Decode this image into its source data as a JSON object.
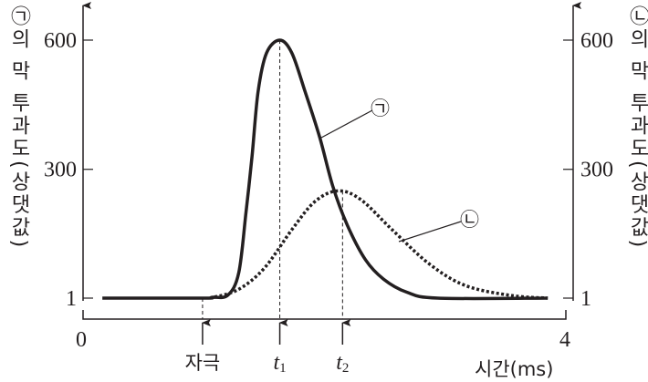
{
  "chart_data": {
    "type": "line",
    "title": "",
    "xlabel": "시간(ms)",
    "ylabel_left": "㉠의 막 투과도(상댓값)",
    "ylabel_right": "㉡의 막 투과도(상댓값)",
    "xlim": [
      0,
      4
    ],
    "ylim": [
      1,
      600
    ],
    "x_ticks": [
      "0",
      "4"
    ],
    "y_ticks_left": [
      "600",
      "300",
      "1"
    ],
    "y_ticks_right": [
      "600",
      "300",
      "1"
    ],
    "y_tick_values": [
      600,
      300,
      1
    ],
    "grid": false,
    "markers": [
      {
        "label": "자극",
        "x": 0.99
      },
      {
        "label": "t",
        "sub": "1",
        "x": 1.63
      },
      {
        "label": "t",
        "sub": "2",
        "x": 2.15
      }
    ],
    "series": [
      {
        "name": "㉠",
        "style": "solid",
        "color": "#231f20",
        "points": [
          [
            0.16,
            1
          ],
          [
            0.99,
            1
          ],
          [
            1.07,
            3
          ],
          [
            1.2,
            8
          ],
          [
            1.29,
            60
          ],
          [
            1.35,
            200
          ],
          [
            1.4,
            330
          ],
          [
            1.45,
            480
          ],
          [
            1.52,
            570
          ],
          [
            1.63,
            600
          ],
          [
            1.73,
            570
          ],
          [
            1.84,
            480
          ],
          [
            1.96,
            375
          ],
          [
            2.07,
            260
          ],
          [
            2.19,
            170
          ],
          [
            2.34,
            90
          ],
          [
            2.49,
            45
          ],
          [
            2.68,
            15
          ],
          [
            2.94,
            1
          ],
          [
            3.85,
            1
          ]
        ]
      },
      {
        "name": "㉡",
        "style": "dotted",
        "color": "#231f20",
        "points": [
          [
            1.05,
            1
          ],
          [
            1.28,
            20
          ],
          [
            1.5,
            70
          ],
          [
            1.73,
            160
          ],
          [
            1.92,
            225
          ],
          [
            2.11,
            250
          ],
          [
            2.3,
            230
          ],
          [
            2.56,
            160
          ],
          [
            2.87,
            80
          ],
          [
            3.17,
            30
          ],
          [
            3.55,
            7
          ],
          [
            3.85,
            1
          ]
        ]
      }
    ]
  }
}
